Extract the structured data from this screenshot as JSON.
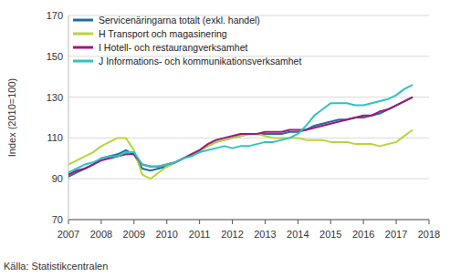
{
  "chart_data": {
    "type": "line",
    "y_label": "Index (2010=100)",
    "source": "Källa: Statistikcentralen",
    "x": [
      2007,
      2007.25,
      2007.5,
      2007.75,
      2008,
      2008.25,
      2008.5,
      2008.75,
      2009,
      2009.25,
      2009.5,
      2009.75,
      2010,
      2010.25,
      2010.5,
      2010.75,
      2011,
      2011.25,
      2011.5,
      2011.75,
      2012,
      2012.25,
      2012.5,
      2012.75,
      2013,
      2013.25,
      2013.5,
      2013.75,
      2014,
      2014.25,
      2014.5,
      2014.75,
      2015,
      2015.25,
      2015.5,
      2015.75,
      2016,
      2016.25,
      2016.5,
      2016.75,
      2017,
      2017.25,
      2017.5
    ],
    "series": [
      {
        "name": "Servicenäringarna totalt (exkl. handel)",
        "color": "#1f6e9e",
        "values": [
          91,
          93,
          95,
          97,
          100,
          101,
          102,
          104,
          102,
          95,
          94,
          95,
          96,
          98,
          100,
          102,
          104,
          106,
          108,
          109,
          110,
          111,
          112,
          112,
          112,
          112,
          112,
          113,
          113,
          114,
          116,
          117,
          118,
          119,
          119,
          120,
          120,
          121,
          122,
          124,
          126,
          128,
          130
        ]
      },
      {
        "name": "H Transport och magasinering",
        "color": "#b8d43a",
        "values": [
          97,
          99,
          101,
          103,
          106,
          108,
          110,
          110,
          104,
          92,
          90,
          93,
          96,
          98,
          100,
          102,
          104,
          106,
          108,
          109,
          110,
          111,
          112,
          112,
          111,
          110,
          110,
          110,
          110,
          109,
          109,
          109,
          108,
          108,
          108,
          107,
          107,
          107,
          106,
          107,
          108,
          111,
          114
        ]
      },
      {
        "name": "I Hotell- och restaurangverksamhet",
        "color": "#a0177c",
        "values": [
          92,
          94,
          95,
          97,
          99,
          100,
          101,
          102,
          102,
          97,
          96,
          96,
          97,
          98,
          100,
          102,
          104,
          107,
          109,
          110,
          111,
          112,
          112,
          112,
          113,
          113,
          113,
          114,
          114,
          114,
          115,
          116,
          117,
          118,
          119,
          120,
          121,
          121,
          123,
          124,
          126,
          128,
          130
        ]
      },
      {
        "name": "J Informations- och kommunikationsverksamhet",
        "color": "#2cc3c0",
        "values": [
          93,
          95,
          97,
          98,
          100,
          101,
          101,
          103,
          103,
          97,
          96,
          96,
          97,
          98,
          100,
          101,
          103,
          104,
          105,
          106,
          105,
          106,
          106,
          107,
          108,
          108,
          109,
          110,
          112,
          116,
          121,
          124,
          127,
          127,
          127,
          126,
          126,
          127,
          128,
          129,
          131,
          134,
          136
        ]
      }
    ],
    "xlim": [
      2007,
      2018
    ],
    "xticks": [
      2007,
      2008,
      2009,
      2010,
      2011,
      2012,
      2013,
      2014,
      2015,
      2016,
      2017,
      2018
    ],
    "ylim": [
      70,
      170
    ],
    "yticks": [
      70,
      90,
      110,
      130,
      150,
      170
    ],
    "grid": true,
    "legend": "top-left"
  }
}
